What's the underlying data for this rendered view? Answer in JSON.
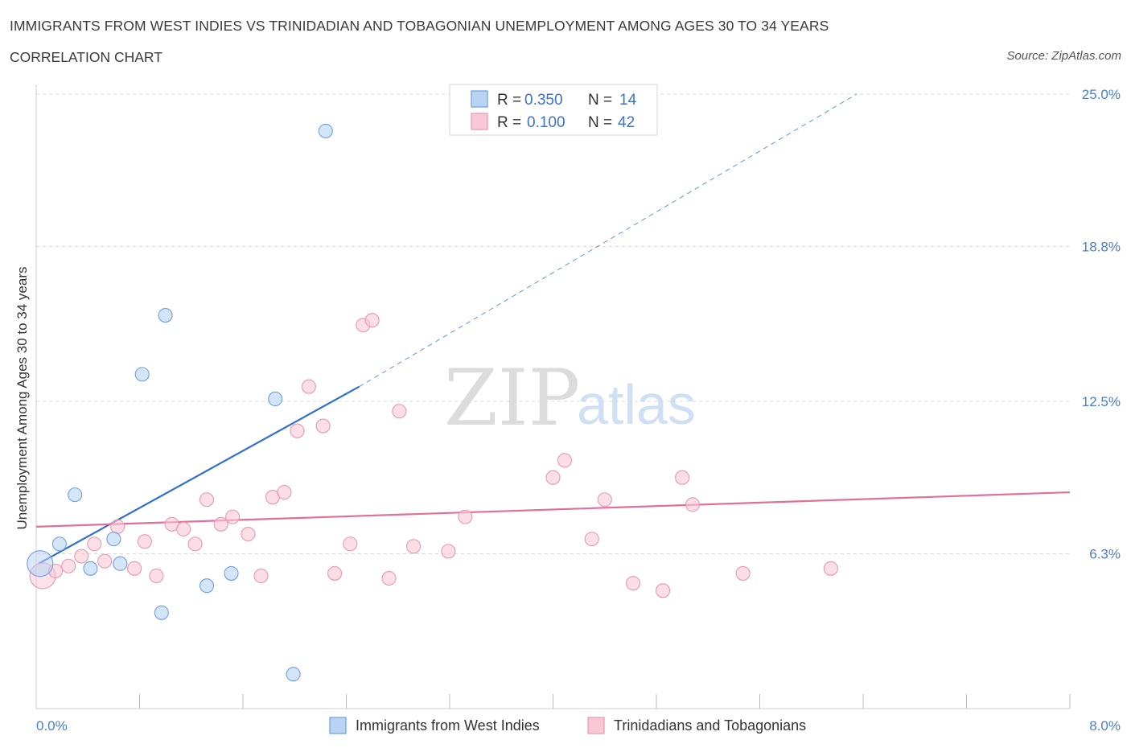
{
  "header": {
    "title": "IMMIGRANTS FROM WEST INDIES VS TRINIDADIAN AND TOBAGONIAN UNEMPLOYMENT AMONG AGES 30 TO 34 YEARS",
    "subtitle": "CORRELATION CHART",
    "source": "Source: ZipAtlas.com"
  },
  "watermark": {
    "zip": "ZIP",
    "atlas": "atlas"
  },
  "colors": {
    "blue_fill": "#b9d3f3",
    "blue_stroke": "#6f9fdf",
    "blue_line": "#2f6fd1",
    "pink_fill": "#f8c8d6",
    "pink_stroke": "#e998b1",
    "pink_line": "#e0709a",
    "grid": "#d8d8d8",
    "axis_text": "#4a7fd0"
  },
  "chart_data": {
    "type": "scatter",
    "xlabel": "",
    "ylabel": "Unemployment Among Ages 30 to 34 years",
    "xlim": [
      0,
      8
    ],
    "ylim": [
      0,
      25
    ],
    "x_tick_labels": [
      "0.0%",
      "8.0%"
    ],
    "y_ticks": [
      6.3,
      12.5,
      18.8,
      25.0
    ],
    "y_tick_labels": [
      "6.3%",
      "12.5%",
      "18.8%",
      "25.0%"
    ],
    "grid": "horizontal dashed",
    "legend_placement": "top-center",
    "stats": [
      {
        "r_label": "R =",
        "r": "0.350",
        "n_label": "N =",
        "n": "14"
      },
      {
        "r_label": "R =",
        "r": "0.100",
        "n_label": "N =",
        "n": "42"
      }
    ],
    "series": [
      {
        "name": "Immigrants from West Indies",
        "color": "#b9d3f3",
        "trend": {
          "x_solid": [
            0.02,
            2.5
          ],
          "y_solid": [
            5.9,
            13.1
          ],
          "x_dashed_end": 6.35,
          "y_dashed_end": 25.0
        },
        "points": [
          {
            "x": 0.03,
            "y": 5.9,
            "big": true
          },
          {
            "x": 0.18,
            "y": 6.7
          },
          {
            "x": 0.3,
            "y": 8.7
          },
          {
            "x": 0.42,
            "y": 5.7
          },
          {
            "x": 0.6,
            "y": 6.9
          },
          {
            "x": 0.65,
            "y": 5.9
          },
          {
            "x": 0.82,
            "y": 13.6
          },
          {
            "x": 0.97,
            "y": 3.9
          },
          {
            "x": 1.0,
            "y": 16.0
          },
          {
            "x": 1.32,
            "y": 5.0
          },
          {
            "x": 1.51,
            "y": 5.5
          },
          {
            "x": 1.85,
            "y": 12.6
          },
          {
            "x": 1.99,
            "y": 1.4
          },
          {
            "x": 2.24,
            "y": 23.5
          }
        ]
      },
      {
        "name": "Trinidadians and Tobagonians",
        "color": "#f8c8d6",
        "trend": {
          "x": [
            0.0,
            8.0
          ],
          "y": [
            7.4,
            8.8
          ]
        },
        "points": [
          {
            "x": 0.05,
            "y": 5.4,
            "big": true
          },
          {
            "x": 0.15,
            "y": 5.6
          },
          {
            "x": 0.25,
            "y": 5.8
          },
          {
            "x": 0.35,
            "y": 6.2
          },
          {
            "x": 0.45,
            "y": 6.7
          },
          {
            "x": 0.53,
            "y": 6.0
          },
          {
            "x": 0.63,
            "y": 7.4
          },
          {
            "x": 0.76,
            "y": 5.7
          },
          {
            "x": 0.84,
            "y": 6.8
          },
          {
            "x": 0.93,
            "y": 5.4
          },
          {
            "x": 1.05,
            "y": 7.5
          },
          {
            "x": 1.14,
            "y": 7.3
          },
          {
            "x": 1.23,
            "y": 6.7
          },
          {
            "x": 1.32,
            "y": 8.5
          },
          {
            "x": 1.43,
            "y": 7.5
          },
          {
            "x": 1.52,
            "y": 7.8
          },
          {
            "x": 1.64,
            "y": 7.1
          },
          {
            "x": 1.74,
            "y": 5.4
          },
          {
            "x": 1.83,
            "y": 8.6
          },
          {
            "x": 1.92,
            "y": 8.8
          },
          {
            "x": 2.02,
            "y": 11.3
          },
          {
            "x": 2.11,
            "y": 13.1
          },
          {
            "x": 2.22,
            "y": 11.5
          },
          {
            "x": 2.31,
            "y": 5.5
          },
          {
            "x": 2.43,
            "y": 6.7
          },
          {
            "x": 2.53,
            "y": 15.6
          },
          {
            "x": 2.6,
            "y": 15.8
          },
          {
            "x": 2.73,
            "y": 5.3
          },
          {
            "x": 2.81,
            "y": 12.1
          },
          {
            "x": 2.92,
            "y": 6.6
          },
          {
            "x": 3.19,
            "y": 6.4
          },
          {
            "x": 3.32,
            "y": 7.8
          },
          {
            "x": 4.0,
            "y": 9.4
          },
          {
            "x": 4.09,
            "y": 10.1
          },
          {
            "x": 4.3,
            "y": 6.9
          },
          {
            "x": 4.4,
            "y": 8.5
          },
          {
            "x": 4.62,
            "y": 5.1
          },
          {
            "x": 4.85,
            "y": 4.8
          },
          {
            "x": 5.0,
            "y": 9.4
          },
          {
            "x": 5.08,
            "y": 8.3
          },
          {
            "x": 5.47,
            "y": 5.5
          },
          {
            "x": 6.15,
            "y": 5.7
          }
        ]
      }
    ]
  }
}
